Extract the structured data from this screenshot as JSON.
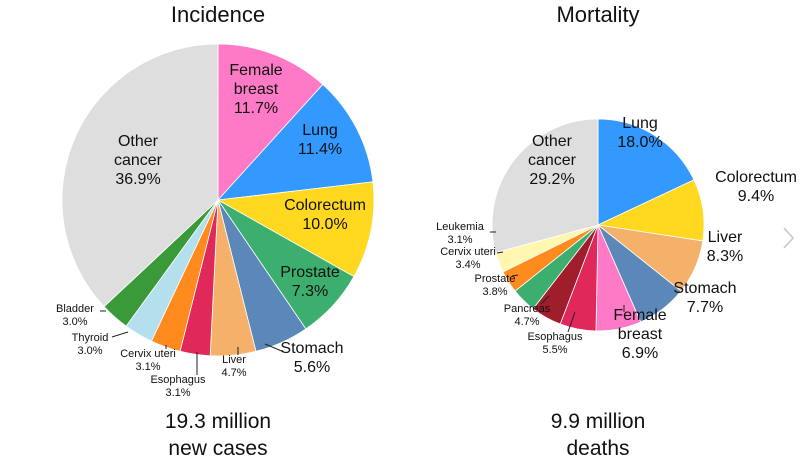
{
  "chart_data": [
    {
      "type": "pie",
      "title": "Incidence",
      "total_line1": "19.3 million",
      "total_line2": "new cases",
      "slices": [
        {
          "key": "female-breast",
          "label": [
            "Female",
            "breast"
          ],
          "pct_label": "11.7%",
          "value": 11.7,
          "color": "#ff7ac6"
        },
        {
          "key": "lung",
          "label": [
            "Lung"
          ],
          "pct_label": "11.4%",
          "value": 11.4,
          "color": "#3399ff"
        },
        {
          "key": "colorectum",
          "label": [
            "Colorectum"
          ],
          "pct_label": "10.0%",
          "value": 10.0,
          "color": "#ffd81f"
        },
        {
          "key": "prostate",
          "label": [
            "Prostate"
          ],
          "pct_label": "7.3%",
          "value": 7.3,
          "color": "#3caf6e"
        },
        {
          "key": "stomach",
          "label": [
            "Stomach"
          ],
          "pct_label": "5.6%",
          "value": 5.6,
          "color": "#5b88b8"
        },
        {
          "key": "liver",
          "label": [
            "Liver"
          ],
          "pct_label": "4.7%",
          "value": 4.7,
          "color": "#f5b06a"
        },
        {
          "key": "esophagus",
          "label": [
            "Esophagus"
          ],
          "pct_label": "3.1%",
          "value": 3.1,
          "color": "#e0285a"
        },
        {
          "key": "cervix-uteri",
          "label": [
            "Cervix uteri"
          ],
          "pct_label": "3.1%",
          "value": 3.1,
          "color": "#ff8a1e"
        },
        {
          "key": "thyroid",
          "label": [
            "Thyroid"
          ],
          "pct_label": "3.0%",
          "value": 3.0,
          "color": "#b3e0ec"
        },
        {
          "key": "bladder",
          "label": [
            "Bladder"
          ],
          "pct_label": "3.0%",
          "value": 3.0,
          "color": "#3a9a3a"
        },
        {
          "key": "other-cancer",
          "label": [
            "Other",
            "cancer"
          ],
          "pct_label": "36.9%",
          "value": 36.9,
          "color": "#dedede"
        }
      ]
    },
    {
      "type": "pie",
      "title": "Mortality",
      "total_line1": "9.9 million",
      "total_line2": "deaths",
      "slices": [
        {
          "key": "lung",
          "label": [
            "Lung"
          ],
          "pct_label": "18.0%",
          "value": 18.0,
          "color": "#3399ff"
        },
        {
          "key": "colorectum",
          "label": [
            "Colorectum"
          ],
          "pct_label": "9.4%",
          "value": 9.4,
          "color": "#ffd81f"
        },
        {
          "key": "liver",
          "label": [
            "Liver"
          ],
          "pct_label": "8.3%",
          "value": 8.3,
          "color": "#f5b06a"
        },
        {
          "key": "stomach",
          "label": [
            "Stomach"
          ],
          "pct_label": "7.7%",
          "value": 7.7,
          "color": "#5b88b8"
        },
        {
          "key": "female-breast",
          "label": [
            "Female",
            "breast"
          ],
          "pct_label": "6.9%",
          "value": 6.9,
          "color": "#ff7ac6"
        },
        {
          "key": "esophagus",
          "label": [
            "Esophagus"
          ],
          "pct_label": "5.5%",
          "value": 5.5,
          "color": "#e0285a"
        },
        {
          "key": "pancreas",
          "label": [
            "Pancreas"
          ],
          "pct_label": "4.7%",
          "value": 4.7,
          "color": "#a01d2c"
        },
        {
          "key": "prostate",
          "label": [
            "Prostate"
          ],
          "pct_label": "3.8%",
          "value": 3.8,
          "color": "#3caf6e"
        },
        {
          "key": "cervix-uteri",
          "label": [
            "Cervix uteri"
          ],
          "pct_label": "3.4%",
          "value": 3.4,
          "color": "#ff8a1e"
        },
        {
          "key": "leukemia",
          "label": [
            "Leukemia"
          ],
          "pct_label": "3.1%",
          "value": 3.1,
          "color": "#fff7b0"
        },
        {
          "key": "other-cancer",
          "label": [
            "Other",
            "cancer"
          ],
          "pct_label": "29.2%",
          "value": 29.2,
          "color": "#dedede"
        }
      ]
    }
  ],
  "nav": {
    "next_icon": "chevron-right-icon"
  }
}
